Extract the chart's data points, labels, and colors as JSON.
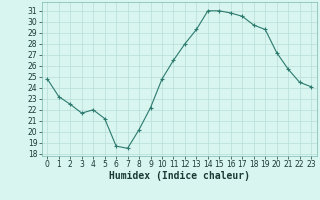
{
  "x": [
    0,
    1,
    2,
    3,
    4,
    5,
    6,
    7,
    8,
    9,
    10,
    11,
    12,
    13,
    14,
    15,
    16,
    17,
    18,
    19,
    20,
    21,
    22,
    23
  ],
  "y": [
    24.8,
    23.2,
    22.5,
    21.7,
    22.0,
    21.2,
    18.7,
    18.5,
    20.2,
    22.2,
    24.8,
    26.5,
    28.0,
    29.3,
    31.0,
    31.0,
    30.8,
    30.5,
    29.7,
    29.3,
    27.2,
    25.7,
    24.5,
    24.1
  ],
  "line_color": "#2d7a6e",
  "marker": "P",
  "marker_size": 3,
  "bg_color": "#d8f5f0",
  "grid_color": "#b8ddd8",
  "xlabel": "Humidex (Indice chaleur)",
  "xlim": [
    -0.5,
    23.5
  ],
  "ylim": [
    17.8,
    31.8
  ],
  "yticks": [
    18,
    19,
    20,
    21,
    22,
    23,
    24,
    25,
    26,
    27,
    28,
    29,
    30,
    31
  ],
  "xticks": [
    0,
    1,
    2,
    3,
    4,
    5,
    6,
    7,
    8,
    9,
    10,
    11,
    12,
    13,
    14,
    15,
    16,
    17,
    18,
    19,
    20,
    21,
    22,
    23
  ],
  "tick_label_fontsize": 5.5,
  "xlabel_fontsize": 7,
  "xlabel_fontweight": "bold",
  "linewidth": 0.8,
  "marker_edge_width": 0.8
}
